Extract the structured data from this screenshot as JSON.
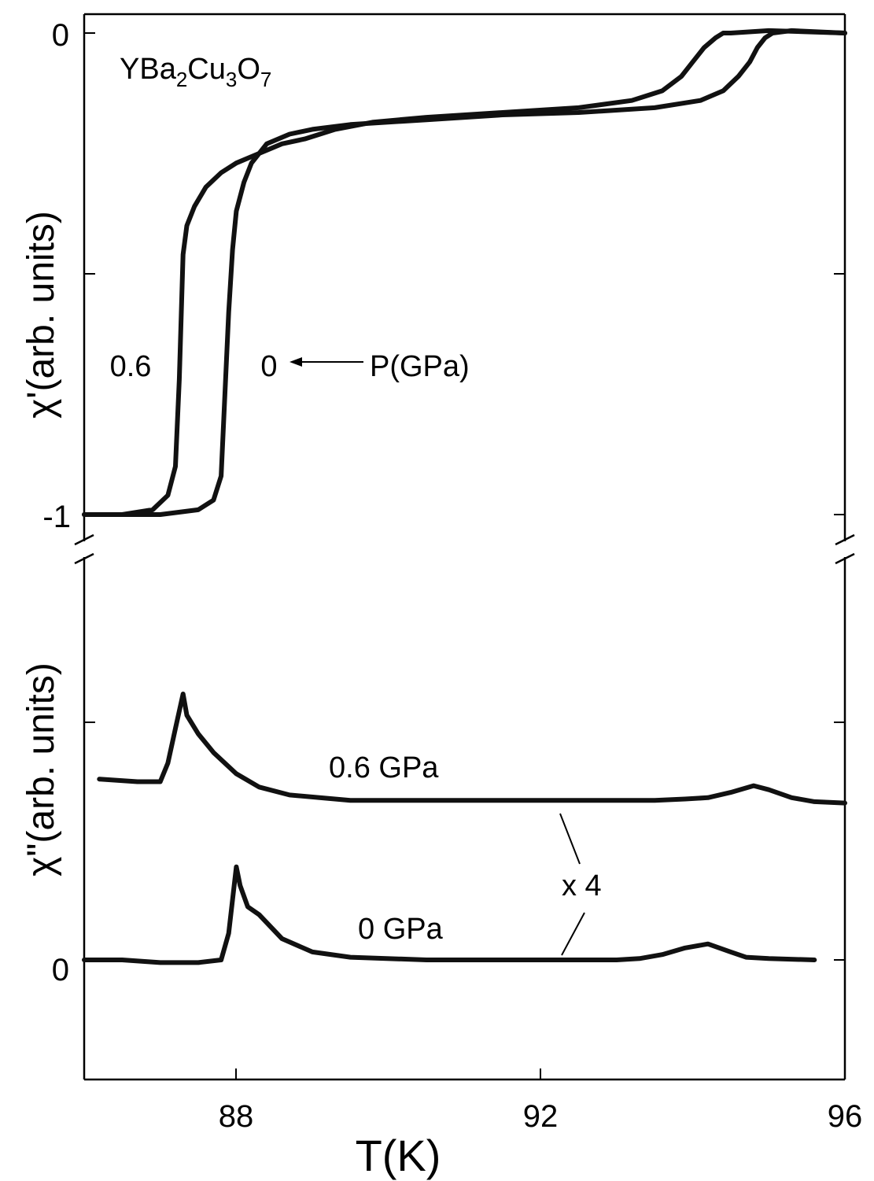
{
  "chart_data": {
    "type": "line",
    "x_label": "T(K)",
    "x_ticks": [
      "88",
      "92",
      "96"
    ],
    "xlim": [
      86,
      96
    ],
    "panels": [
      {
        "id": "top",
        "ylabel": "χ'(arb. units)",
        "y_tick_labels": [
          "0",
          "-1"
        ],
        "ylim": [
          -1,
          0
        ],
        "annotation": "YBa2Cu3O7",
        "formula": [
          {
            "t": "YBa",
            "sub": false
          },
          {
            "t": "2",
            "sub": true
          },
          {
            "t": "Cu",
            "sub": false
          },
          {
            "t": "3",
            "sub": true
          },
          {
            "t": "O",
            "sub": false
          },
          {
            "t": "7",
            "sub": true
          }
        ],
        "series": [
          {
            "name": "0.6",
            "color": "#111111",
            "x": [
              86,
              86.5,
              86.9,
              87.1,
              87.2,
              87.25,
              87.3,
              87.35,
              87.45,
              87.6,
              87.8,
              88.0,
              88.3,
              88.6,
              88.9,
              89.3,
              89.8,
              90.5,
              91.5,
              92.5,
              93.2,
              93.6,
              93.85,
              94.0,
              94.15,
              94.3,
              94.4,
              94.5,
              95,
              96
            ],
            "y": [
              -1.0,
              -1.0,
              -0.99,
              -0.96,
              -0.9,
              -0.72,
              -0.46,
              -0.4,
              -0.36,
              -0.32,
              -0.29,
              -0.27,
              -0.25,
              -0.23,
              -0.22,
              -0.2,
              -0.185,
              -0.175,
              -0.165,
              -0.155,
              -0.14,
              -0.12,
              -0.09,
              -0.06,
              -0.03,
              -0.01,
              0.0,
              0.0,
              0.005,
              0.0
            ]
          },
          {
            "name": "0",
            "color": "#111111",
            "x": [
              86,
              87,
              87.5,
              87.7,
              87.8,
              87.85,
              87.9,
              87.95,
              88.0,
              88.1,
              88.2,
              88.4,
              88.7,
              89.0,
              89.5,
              90.5,
              91.5,
              92.5,
              93.5,
              94.1,
              94.4,
              94.6,
              94.75,
              94.85,
              94.95,
              95.05,
              95.3,
              96
            ],
            "y": [
              -1.0,
              -1.0,
              -0.99,
              -0.97,
              -0.92,
              -0.75,
              -0.58,
              -0.45,
              -0.37,
              -0.31,
              -0.27,
              -0.23,
              -0.21,
              -0.2,
              -0.19,
              -0.18,
              -0.17,
              -0.165,
              -0.155,
              -0.14,
              -0.12,
              -0.09,
              -0.06,
              -0.03,
              -0.01,
              0.0,
              0.005,
              0.0
            ]
          }
        ],
        "curve_labels": [
          "0.6",
          "0",
          "P(GPa)"
        ]
      },
      {
        "id": "bottom",
        "ylabel": "χ\"(arb. units)",
        "y_tick_labels": [
          "0"
        ],
        "series": [
          {
            "name": "0.6 GPa",
            "color": "#111111",
            "x": [
              86.2,
              86.7,
              87.0,
              87.1,
              87.2,
              87.3,
              87.35,
              87.5,
              87.7,
              88.0,
              88.3,
              88.7,
              89.5,
              90.5,
              91.5,
              92.5,
              93.0,
              93.5,
              93.9,
              94.2,
              94.5,
              94.8,
              95.0,
              95.3,
              95.6,
              96
            ],
            "y": [
              0.68,
              0.67,
              0.67,
              0.74,
              0.87,
              1.0,
              0.92,
              0.85,
              0.78,
              0.7,
              0.65,
              0.62,
              0.6,
              0.6,
              0.6,
              0.6,
              0.6,
              0.6,
              0.605,
              0.61,
              0.63,
              0.655,
              0.64,
              0.61,
              0.595,
              0.59
            ]
          },
          {
            "name": "0 GPa",
            "color": "#111111",
            "x": [
              86,
              86.5,
              87.0,
              87.5,
              87.8,
              87.9,
              88.0,
              88.05,
              88.15,
              88.3,
              88.6,
              89.0,
              89.5,
              90.5,
              91.5,
              92.5,
              93.0,
              93.3,
              93.6,
              93.9,
              94.2,
              94.5,
              94.7,
              95.0,
              95.6
            ],
            "y": [
              0.0,
              0.0,
              -0.01,
              -0.01,
              0.0,
              0.1,
              0.35,
              0.28,
              0.2,
              0.17,
              0.08,
              0.03,
              0.01,
              0.0,
              0.0,
              0.0,
              0.0,
              0.005,
              0.02,
              0.045,
              0.06,
              0.03,
              0.01,
              0.005,
              0.0
            ]
          }
        ],
        "curve_labels": [
          "0.6 GPa",
          "0 GPa",
          "x 4"
        ]
      }
    ]
  }
}
